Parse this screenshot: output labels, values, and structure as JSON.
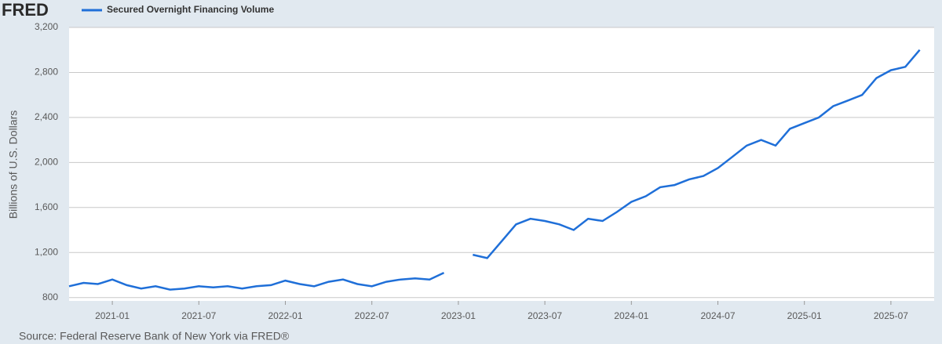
{
  "brand": "FRED",
  "source": "Source: Federal Reserve Bank of New York via FRED®",
  "chart_data": {
    "type": "line",
    "y_label": "Billions of U.S. Dollars",
    "x": [
      "2020-10",
      "2020-11",
      "2020-12",
      "2021-01",
      "2021-02",
      "2021-03",
      "2021-04",
      "2021-05",
      "2021-06",
      "2021-07",
      "2021-08",
      "2021-09",
      "2021-10",
      "2021-11",
      "2021-12",
      "2022-01",
      "2022-02",
      "2022-03",
      "2022-04",
      "2022-05",
      "2022-06",
      "2022-07",
      "2022-08",
      "2022-09",
      "2022-10",
      "2022-11",
      "2022-12",
      "2023-01",
      "2023-02",
      "2023-03",
      "2023-04",
      "2023-05",
      "2023-06",
      "2023-07",
      "2023-08",
      "2023-09",
      "2023-10",
      "2023-11",
      "2023-12",
      "2024-01",
      "2024-02",
      "2024-03",
      "2024-04",
      "2024-05",
      "2024-06",
      "2024-07",
      "2024-08",
      "2024-09",
      "2024-10",
      "2024-11",
      "2024-12",
      "2025-01",
      "2025-02",
      "2025-03",
      "2025-04",
      "2025-05",
      "2025-06",
      "2025-07",
      "2025-08",
      "2025-09"
    ],
    "series": [
      {
        "name": "Secured Overnight Financing Volume",
        "color": "#1f6fd8",
        "values": [
          900,
          930,
          920,
          960,
          910,
          880,
          900,
          870,
          880,
          900,
          890,
          900,
          880,
          900,
          910,
          950,
          920,
          900,
          940,
          960,
          920,
          900,
          940,
          960,
          970,
          960,
          1020,
          null,
          1180,
          1150,
          1300,
          1450,
          1500,
          1480,
          1450,
          1400,
          1500,
          1480,
          1560,
          1650,
          1700,
          1780,
          1800,
          1850,
          1880,
          1950,
          2050,
          2150,
          2200,
          2150,
          2300,
          2350,
          2400,
          2500,
          2550,
          2600,
          2750,
          2820,
          2850,
          3000
        ]
      }
    ],
    "xlim": [
      "2020-10",
      "2025-10"
    ],
    "xticks": [
      "2021-01",
      "2021-07",
      "2022-01",
      "2022-07",
      "2023-01",
      "2023-07",
      "2024-01",
      "2024-07",
      "2025-01",
      "2025-07"
    ],
    "ylim": [
      770,
      3200
    ],
    "yticks": [
      800,
      {
        "value": 1200,
        "label": "1,200"
      },
      {
        "value": 1600,
        "label": "1,600"
      },
      {
        "value": 2000,
        "label": "2,000"
      },
      {
        "value": 2400,
        "label": "2,400"
      },
      {
        "value": 2800,
        "label": "2,800"
      },
      {
        "value": 3200,
        "label": "3,200"
      }
    ],
    "grid": true
  }
}
